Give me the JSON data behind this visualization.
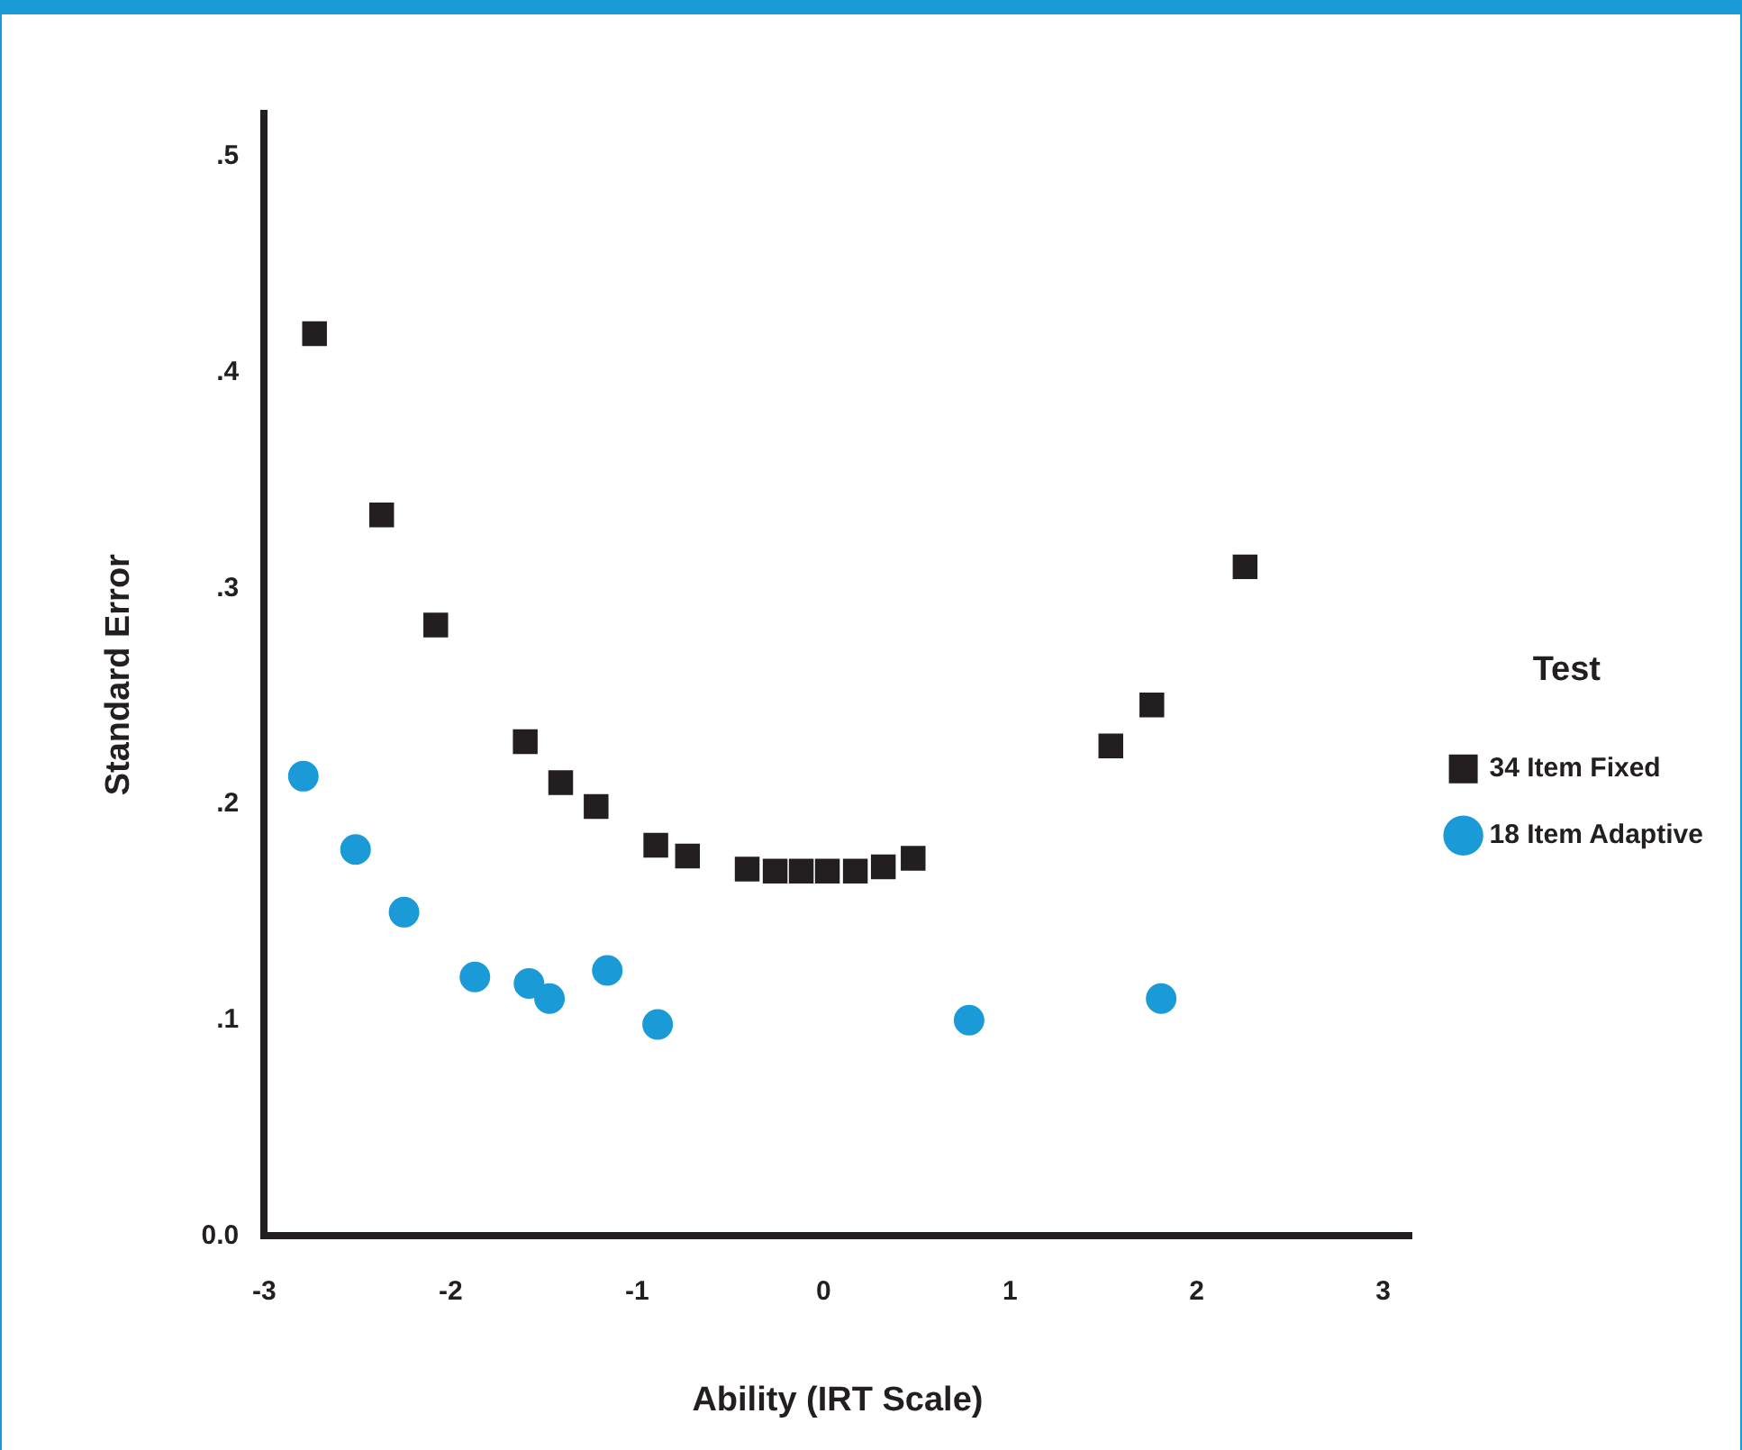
{
  "chart_data": {
    "type": "scatter",
    "xlabel": "Ability (IRT Scale)",
    "ylabel": "Standard Error",
    "legend_title": "Test",
    "legend": "right",
    "grid": false,
    "xlim": [
      -3,
      3.15
    ],
    "xticks": [
      -3,
      -2,
      -1,
      0,
      1,
      2,
      3
    ],
    "ylim": [
      0,
      0.52
    ],
    "yticks": [
      {
        "value": 0,
        "label": "0.0"
      },
      {
        "value": 0.1,
        "label": ".1"
      },
      {
        "value": 0.2,
        "label": ".2"
      },
      {
        "value": 0.3,
        "label": ".3"
      },
      {
        "value": 0.4,
        "label": ".4"
      },
      {
        "value": 0.5,
        "label": ".5"
      }
    ],
    "series": [
      {
        "name": "34 Item Fixed",
        "color": "#231f20",
        "marker": "square",
        "x": [
          -2.73,
          -2.37,
          -2.08,
          -1.6,
          -1.41,
          -1.22,
          -0.9,
          -0.73,
          -0.41,
          -0.26,
          -0.12,
          0.02,
          0.17,
          0.32,
          0.48,
          1.54,
          1.76,
          2.26
        ],
        "values": [
          0.418,
          0.334,
          0.283,
          0.229,
          0.21,
          0.199,
          0.181,
          0.176,
          0.17,
          0.169,
          0.169,
          0.169,
          0.169,
          0.171,
          0.175,
          0.227,
          0.246,
          0.31
        ]
      },
      {
        "name": "18 Item Adaptive",
        "color": "#1a9ad6",
        "marker": "circle",
        "x": [
          -2.79,
          -2.51,
          -2.25,
          -1.87,
          -1.58,
          -1.47,
          -1.16,
          -0.89,
          0.78,
          1.81
        ],
        "values": [
          0.213,
          0.179,
          0.15,
          0.12,
          0.117,
          0.11,
          0.123,
          0.098,
          0.1,
          0.11
        ]
      }
    ]
  }
}
